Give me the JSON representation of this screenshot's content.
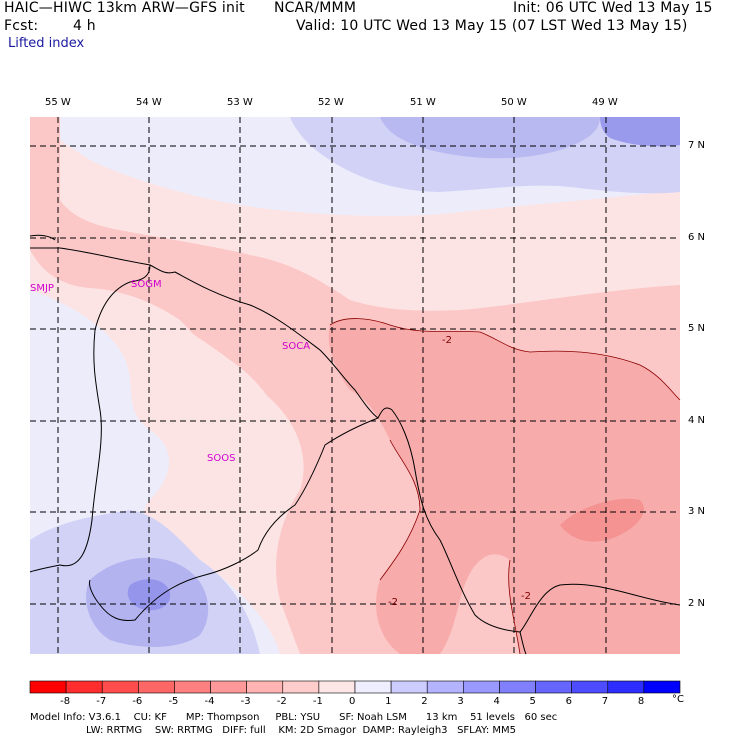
{
  "header": {
    "model": "HAIC—HIWC 13km ARW—GFS init",
    "org": "NCAR/MMM",
    "init": "Init: 06 UTC Wed 13 May 15",
    "fcst_label": "Fcst:",
    "fcst_value": "4 h",
    "valid": "Valid: 10 UTC Wed 13 May 15 (07 LST Wed 13 May 15)",
    "field": "Lifted index"
  },
  "map": {
    "lon_labels": [
      "55 W",
      "54 W",
      "53 W",
      "52 W",
      "51 W",
      "50 W",
      "49 W"
    ],
    "lat_labels": [
      "7 N",
      "6 N",
      "5 N",
      "4 N",
      "3 N",
      "2 N"
    ],
    "stations": [
      "SMJP",
      "SOGM",
      "SOCA",
      "SOOS"
    ],
    "contour_labels": [
      "-2",
      "-2",
      "-2"
    ],
    "colors": {
      "light_pink": "#fde4e4",
      "pink": "#fbc7c7",
      "medium_pink": "#f8a8a8",
      "deeper_pink": "#f59090",
      "light_blue": "#e6e6fb",
      "blue": "#c7c7f5",
      "medium_blue": "#a8a8f0",
      "deep_blue": "#8c8ceb",
      "station_label": "#d000d0"
    }
  },
  "colorbar": {
    "ticks": [
      "-8",
      "-7",
      "-6",
      "-5",
      "-4",
      "-3",
      "-2",
      "-1",
      "0",
      "1",
      "2",
      "3",
      "4",
      "5",
      "6",
      "7",
      "8"
    ],
    "unit": "°C",
    "colors": [
      "#ff0000",
      "#ff2d2d",
      "#ff4d4d",
      "#ff6666",
      "#ff8080",
      "#ff9999",
      "#ffb3b3",
      "#ffcccc",
      "#ffe6e6",
      "#eeeeff",
      "#ccccff",
      "#b3b3ff",
      "#9999ff",
      "#8080ff",
      "#6666ff",
      "#4d4dff",
      "#2d2dff",
      "#0000ff"
    ]
  },
  "model_info": {
    "line1": "Model Info: V3.6.1    CU: KF      MP: Thompson     PBL: YSU      SF: Noah LSM      13 km    51 levels   60 sec",
    "line2": "LW: RRTMG    SW: RRTMG   DIFF: full    KM: 2D Smagor  DAMP: Rayleigh3   SFLAY: MM5"
  }
}
